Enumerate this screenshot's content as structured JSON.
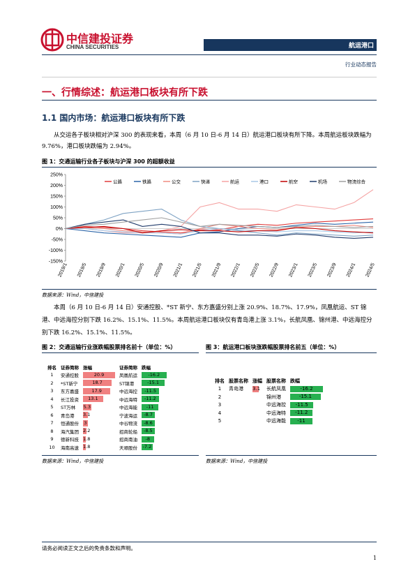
{
  "header": {
    "company_cn": "中信建投证券",
    "company_en": "CHINA SECURITIES",
    "sector": "航运港口",
    "report_type": "行业动态报告"
  },
  "section_title": "一、行情综述：航运港口板块有所下跌",
  "subsection_title": "1.1 国内市场：航运港口板块有所下跌",
  "paragraph1": "从交运各子板块相对沪深 300 的表现来看，本周（6 月 10 日-6 月 14 日）航运港口板块有所下降。本周航运板块跌幅为 9.76%，港口板块跌幅为 2.94%。",
  "figure1_caption": "图 1：交通运输行业各子板块与沪深 300 的超额收益",
  "figure1_source": "数据来源：Wind，中信建投",
  "chart_data": {
    "type": "line",
    "categories": [
      "2019/1",
      "2019/5",
      "2019/9",
      "2020/1",
      "2020/5",
      "2020/9",
      "2021/1",
      "2021/5",
      "2021/9",
      "2022/1",
      "2022/5",
      "2022/9",
      "2023/1",
      "2023/5",
      "2023/9",
      "2024/1",
      "2024/5"
    ],
    "series": [
      {
        "name": "公路",
        "color": "#e03a3a",
        "values": [
          0,
          10,
          5,
          0,
          -10,
          -15,
          -20,
          -5,
          -5,
          10,
          20,
          15,
          25,
          30,
          35,
          40,
          45
        ]
      },
      {
        "name": "铁路",
        "color": "#2a64a8",
        "values": [
          0,
          -10,
          -20,
          -25,
          -30,
          -35,
          -40,
          -20,
          -15,
          0,
          10,
          5,
          15,
          25,
          20,
          25,
          30
        ]
      },
      {
        "name": "公交",
        "color": "#f08a80",
        "values": [
          0,
          5,
          0,
          -10,
          -15,
          -20,
          -25,
          0,
          20,
          10,
          0,
          -5,
          5,
          10,
          10,
          15,
          5
        ]
      },
      {
        "name": "快递",
        "color": "#7fa3c4",
        "values": [
          0,
          20,
          40,
          70,
          80,
          90,
          40,
          10,
          0,
          -10,
          -20,
          -30,
          -20,
          -25,
          -30,
          -35,
          -30
        ]
      },
      {
        "name": "航运",
        "color": "#f5a3a3",
        "values": [
          0,
          0,
          -10,
          -20,
          -20,
          -10,
          10,
          100,
          120,
          90,
          90,
          80,
          110,
          100,
          90,
          120,
          180
        ]
      },
      {
        "name": "港口",
        "color": "#a9c8e6",
        "values": [
          0,
          0,
          -10,
          -15,
          -20,
          -20,
          -25,
          -10,
          0,
          -5,
          -10,
          -15,
          -10,
          -10,
          -15,
          -20,
          -15
        ]
      },
      {
        "name": "航空",
        "color": "#c00000",
        "values": [
          0,
          5,
          10,
          0,
          -20,
          -10,
          -5,
          -10,
          -10,
          -15,
          -10,
          -10,
          5,
          0,
          -10,
          -15,
          -20
        ]
      },
      {
        "name": "机场",
        "color": "#1f3a6a",
        "values": [
          0,
          20,
          30,
          40,
          10,
          20,
          10,
          -20,
          -20,
          -30,
          -30,
          -35,
          -25,
          -30,
          -40,
          -45,
          -40
        ]
      },
      {
        "name": "物流综合",
        "color": "#a0a0a0",
        "values": [
          0,
          15,
          20,
          30,
          40,
          50,
          30,
          10,
          20,
          15,
          10,
          5,
          10,
          15,
          10,
          5,
          10
        ]
      }
    ],
    "ylim": [
      -150,
      250
    ],
    "yticks": [
      {
        "value": -150,
        "label": "-150%"
      },
      {
        "value": -100,
        "label": "-100%"
      },
      {
        "value": -50,
        "label": "-50%"
      },
      {
        "value": 0,
        "label": "0%"
      },
      {
        "value": 50,
        "label": "50%"
      },
      {
        "value": 100,
        "label": "100%"
      },
      {
        "value": 150,
        "label": "150%"
      },
      {
        "value": 200,
        "label": "200%"
      },
      {
        "value": 250,
        "label": "250%"
      }
    ]
  },
  "paragraph2": "本周（6 月 10 日-6 月 14 日）安通控股、*ST 新宁、东方嘉盛分别上涨 20.9%、18.7%、17.9%，凤凰航运、ST 锦港、中远海控分别下跌 16.2%、15.1%、11.5%。本周航运港口板块仅有青岛港上涨 3.1%，长航凤凰、锦州港、中远海控分别下跌 16.2%、15.1%、11.5%。",
  "figure2_caption": "图 2：交通运输行业涨跌幅股票排名前十（单位：%）",
  "figure3_caption": "图 3：航运港口板块涨跌幅股票排名前五（单位：%）",
  "table2": {
    "header": [
      "排名",
      "证券简称",
      "涨幅",
      "证券简称",
      "跌幅"
    ],
    "rows": [
      [
        1,
        "安通控股",
        20.9,
        "凤凰航运",
        -16.2
      ],
      [
        2,
        "*ST新宁",
        18.7,
        "ST锦港",
        -15.1
      ],
      [
        3,
        "东方嘉盛",
        17.9,
        "中远海控",
        -11.5
      ],
      [
        4,
        "长江投资",
        13.1,
        "中远海特",
        -11.2
      ],
      [
        5,
        "ST万林",
        5.3,
        "中远海能",
        -11.0
      ],
      [
        6,
        "青岛港",
        3.1,
        "宁波海运",
        -8.7
      ],
      [
        7,
        "恒通股份",
        3.0,
        "中谷物流",
        -8.6
      ],
      [
        8,
        "海汽集团",
        2.2,
        "招商轮船",
        -8.5
      ],
      [
        9,
        "德新科技",
        1.8,
        "招商南油",
        -8.0
      ],
      [
        10,
        "海南高速",
        1.8,
        "天顺股份",
        -7.2
      ]
    ]
  },
  "table3": {
    "header": [
      "排名",
      "股票名称",
      "涨幅",
      "股票名称",
      "跌幅"
    ],
    "rows": [
      [
        1,
        "青岛港",
        3.1,
        "长航凤凰",
        -16.2
      ],
      [
        2,
        null,
        null,
        "锦州港",
        -15.1
      ],
      [
        3,
        null,
        null,
        "中远海控",
        -11.5
      ],
      [
        4,
        null,
        null,
        "中远海特",
        -11.2
      ],
      [
        5,
        null,
        null,
        "中远海能",
        -11.0
      ]
    ]
  },
  "figure2_source": "数据来源：Wind，中信建投",
  "figure3_source": "数据来源：Wind，中信建投",
  "footer": {
    "disclaimer": "请务必阅读正文之后的免责条款和声明。",
    "page": "1"
  }
}
